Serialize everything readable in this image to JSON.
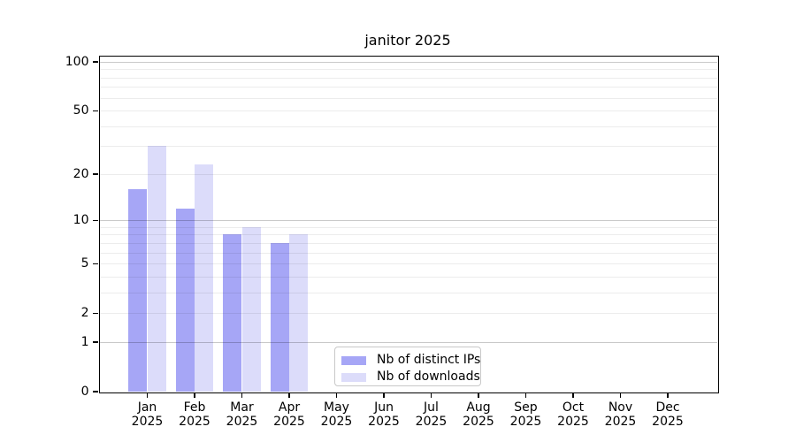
{
  "chart_data": {
    "type": "bar",
    "title": "janitor 2025",
    "categories": [
      "Jan 2025",
      "Feb 2025",
      "Mar 2025",
      "Apr 2025",
      "May 2025",
      "Jun 2025",
      "Jul 2025",
      "Aug 2025",
      "Sep 2025",
      "Oct 2025",
      "Nov 2025",
      "Dec 2025"
    ],
    "series": [
      {
        "name": "Nb of distinct IPs",
        "color": "#a6a6f6",
        "values": [
          16,
          12,
          8,
          7,
          0,
          0,
          0,
          0,
          0,
          0,
          0,
          0
        ]
      },
      {
        "name": "Nb of downloads",
        "color": "#dcdcfa",
        "values": [
          30,
          23,
          9,
          8,
          0,
          0,
          0,
          0,
          0,
          0,
          0,
          0
        ]
      }
    ],
    "xlabel": "",
    "ylabel": "",
    "yscale": "log1p",
    "ylim": [
      0,
      109
    ],
    "ytick_labels": [
      100,
      50,
      20,
      10,
      5,
      2,
      1,
      0
    ],
    "major_gridlines": [
      1,
      10,
      100
    ],
    "minor_gridlines": [
      2,
      3,
      4,
      5,
      6,
      7,
      8,
      9,
      20,
      30,
      40,
      50,
      60,
      70,
      80,
      90
    ],
    "grid": true,
    "legend_position": "lower center"
  },
  "colors": {
    "grid_major": "rgba(0,0,0,0.21)",
    "grid_minor": "rgba(0,0,0,0.075)",
    "spine": "#000000",
    "legend_border": "#c8c8c8",
    "text": "#000000"
  }
}
